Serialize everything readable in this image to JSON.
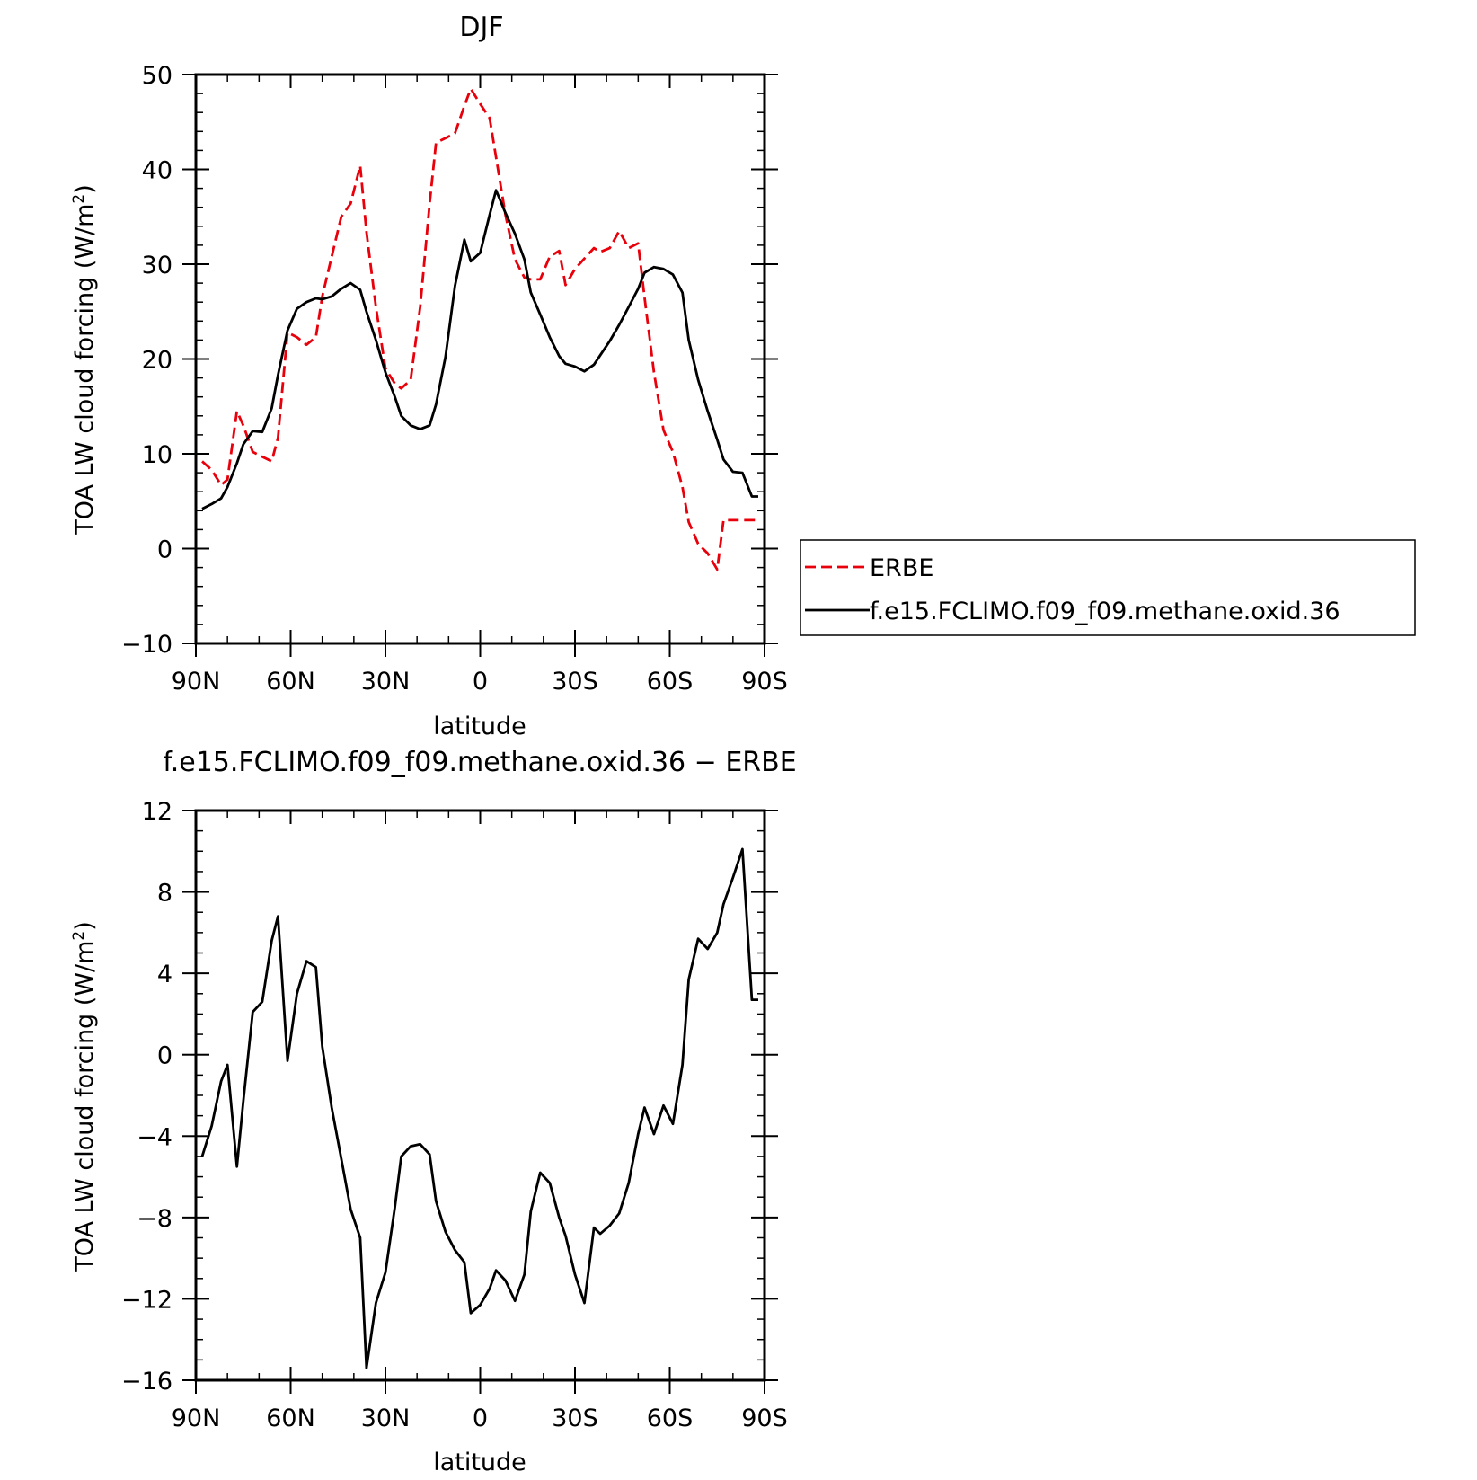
{
  "chart_data": [
    {
      "type": "line",
      "title": "DJF",
      "xlabel": "latitude",
      "ylabel": "TOA LW cloud forcing (W/m²)",
      "ylabel_main": "TOA LW cloud forcing (W/m",
      "ylabel_sup": "2",
      "ylabel_end": ")",
      "xlim": [
        90,
        -90
      ],
      "ylim": [
        -10,
        50
      ],
      "xticks": [
        90,
        60,
        30,
        0,
        -30,
        -60,
        -90
      ],
      "xtick_labels": [
        "90N",
        "60N",
        "30N",
        "0",
        "30S",
        "60S",
        "90S"
      ],
      "yticks": [
        -10,
        0,
        10,
        20,
        30,
        40,
        50
      ],
      "ytick_labels": [
        "−10",
        "0",
        "10",
        "20",
        "30",
        "40",
        "50"
      ],
      "grid": false,
      "legend_position": "right",
      "series": [
        {
          "name": "ERBE",
          "color": "#e8000b",
          "dash": "dashed",
          "x": [
            88,
            85,
            82,
            80,
            77,
            75,
            72,
            69,
            66,
            64,
            61,
            58,
            55,
            52,
            50,
            47,
            44,
            41,
            38,
            36,
            33,
            30,
            27,
            25,
            22,
            19,
            16,
            14,
            11,
            8,
            5,
            3,
            0,
            -3,
            -5,
            -8,
            -11,
            -14,
            -16,
            -19,
            -22,
            -25,
            -27,
            -30,
            -33,
            -36,
            -38,
            -41,
            -44,
            -47,
            -50,
            -52,
            -55,
            -58,
            -61,
            -64,
            -66,
            -69,
            -72,
            -75,
            -77,
            -80,
            -83,
            -86,
            -88
          ],
          "y": [
            9.2,
            8.3,
            6.7,
            7.3,
            14.5,
            13.0,
            10.2,
            9.7,
            9.2,
            11.7,
            22.8,
            22.3,
            21.5,
            22.3,
            26.6,
            30.8,
            35.0,
            36.4,
            40.4,
            33.4,
            25.5,
            19.0,
            17.4,
            16.9,
            17.8,
            25.5,
            36.4,
            42.8,
            43.3,
            43.8,
            46.7,
            48.5,
            46.9,
            45.4,
            41.3,
            35.2,
            30.5,
            28.6,
            28.4,
            28.4,
            30.8,
            31.4,
            27.8,
            29.5,
            30.6,
            31.7,
            31.3,
            31.7,
            33.5,
            31.7,
            32.2,
            26.5,
            18.6,
            12.5,
            10.2,
            6.5,
            2.8,
            0.5,
            -0.5,
            -2.2,
            3.0,
            3.0,
            3.0,
            3.0,
            3.0
          ]
        },
        {
          "name": "f.e15.FCLIMO.f09_f09.methane.oxid.36",
          "color": "#000000",
          "dash": "solid",
          "x": [
            88,
            85,
            82,
            80,
            77,
            75,
            72,
            69,
            66,
            64,
            61,
            58,
            55,
            52,
            50,
            47,
            44,
            41,
            38,
            36,
            33,
            30,
            27,
            25,
            22,
            19,
            16,
            14,
            11,
            8,
            5,
            3,
            0,
            -3,
            -5,
            -8,
            -11,
            -14,
            -16,
            -19,
            -22,
            -25,
            -27,
            -30,
            -33,
            -36,
            -38,
            -41,
            -44,
            -47,
            -50,
            -52,
            -55,
            -58,
            -61,
            -64,
            -66,
            -69,
            -72,
            -75,
            -77,
            -80,
            -83,
            -86,
            -88
          ],
          "y": [
            4.2,
            4.7,
            5.3,
            6.5,
            9.0,
            11.0,
            12.4,
            12.3,
            14.8,
            18.3,
            23.0,
            25.3,
            26.0,
            26.4,
            26.3,
            26.6,
            27.4,
            28.0,
            27.3,
            25.0,
            22.0,
            18.6,
            16.0,
            14.0,
            13.0,
            12.6,
            13.0,
            15.2,
            20.2,
            27.7,
            32.6,
            30.3,
            31.2,
            35.2,
            37.8,
            35.4,
            33.2,
            30.5,
            27.0,
            24.7,
            22.3,
            20.3,
            19.5,
            19.2,
            18.7,
            19.4,
            20.4,
            21.9,
            23.6,
            25.5,
            27.4,
            29.1,
            29.7,
            29.5,
            28.9,
            27.0,
            22.0,
            17.8,
            14.5,
            11.5,
            9.4,
            8.1,
            8.0,
            5.5,
            5.5
          ]
        }
      ]
    },
    {
      "type": "line",
      "title": "f.e15.FCLIMO.f09_f09.methane.oxid.36 − ERBE",
      "xlabel": "latitude",
      "ylabel": "TOA LW cloud forcing (W/m²)",
      "ylabel_main": "TOA LW cloud forcing (W/m",
      "ylabel_sup": "2",
      "ylabel_end": ")",
      "xlim": [
        90,
        -90
      ],
      "ylim": [
        -16,
        12
      ],
      "xticks": [
        90,
        60,
        30,
        0,
        -30,
        -60,
        -90
      ],
      "xtick_labels": [
        "90N",
        "60N",
        "30N",
        "0",
        "30S",
        "60S",
        "90S"
      ],
      "yticks": [
        -16,
        -12,
        -8,
        -4,
        0,
        4,
        8,
        12
      ],
      "ytick_labels": [
        "−16",
        "−12",
        "−8",
        "−4",
        "0",
        "4",
        "8",
        "12"
      ],
      "grid": false,
      "series": [
        {
          "name": "f.e15.FCLIMO.f09_f09.methane.oxid.36 − ERBE",
          "color": "#000000",
          "dash": "solid",
          "x": [
            88,
            85,
            82,
            80,
            77,
            75,
            72,
            69,
            66,
            64,
            61,
            58,
            55,
            52,
            50,
            47,
            44,
            41,
            38,
            36,
            33,
            30,
            27,
            25,
            22,
            19,
            16,
            14,
            11,
            8,
            5,
            3,
            0,
            -3,
            -5,
            -8,
            -11,
            -14,
            -16,
            -19,
            -22,
            -25,
            -27,
            -30,
            -33,
            -36,
            -38,
            -41,
            -44,
            -47,
            -50,
            -52,
            -55,
            -58,
            -61,
            -64,
            -66,
            -69,
            -72,
            -75,
            -77,
            -80,
            -83,
            -86,
            -88
          ],
          "y": [
            -5.0,
            -3.5,
            -1.3,
            -0.5,
            -5.5,
            -2.3,
            2.1,
            2.6,
            5.6,
            6.8,
            -0.3,
            3.0,
            4.6,
            4.3,
            0.4,
            -2.6,
            -5.1,
            -7.6,
            -9.0,
            -15.4,
            -12.2,
            -10.7,
            -7.5,
            -5.0,
            -4.5,
            -4.4,
            -4.9,
            -7.2,
            -8.7,
            -9.6,
            -10.2,
            -12.7,
            -12.3,
            -11.5,
            -10.6,
            -11.1,
            -12.1,
            -10.8,
            -7.7,
            -5.8,
            -6.3,
            -8.0,
            -8.9,
            -10.8,
            -12.2,
            -8.5,
            -8.8,
            -8.4,
            -7.8,
            -6.3,
            -3.9,
            -2.6,
            -3.9,
            -2.5,
            -3.4,
            -0.5,
            3.7,
            5.7,
            5.2,
            6.0,
            7.4,
            8.7,
            10.1,
            2.7,
            2.7
          ]
        }
      ]
    }
  ]
}
